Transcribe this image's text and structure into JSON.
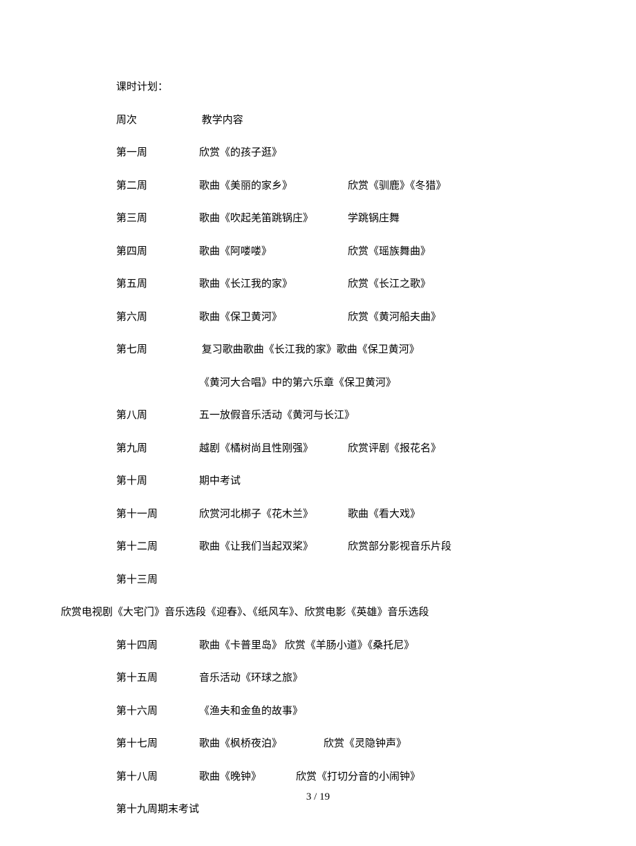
{
  "title": "课时计划：",
  "header_week": "周次",
  "header_content": "教学内容",
  "rows": [
    {
      "week": "第一周",
      "a": "欣赏《的孩子逛》",
      "b": ""
    },
    {
      "week": "第二周",
      "a": "歌曲《美丽的家乡》",
      "b": "欣赏《驯鹿》《冬猎》"
    },
    {
      "week": "第三周",
      "a": "歌曲《吹起羌笛跳锅庄》",
      "b": "学跳锅庄舞"
    },
    {
      "week": "第四周",
      "a": "歌曲《阿喽喽》",
      "b": "欣赏《瑶族舞曲》"
    },
    {
      "week": "第五周",
      "a": "歌曲《长江我的家》",
      "b": "欣赏《长江之歌》"
    },
    {
      "week": "第六周",
      "a": "歌曲《保卫黄河》",
      "b": "欣赏《黄河船夫曲》"
    }
  ],
  "row7": {
    "week": "第七周",
    "line1": "复习歌曲歌曲《长江我的家》歌曲《保卫黄河》",
    "line2": "《黄河大合唱》中的第六乐章《保卫黄河》"
  },
  "rows_mid": [
    {
      "week": "第八周",
      "a": "五一放假音乐活动《黄河与长江》",
      "b": ""
    },
    {
      "week": "第九周",
      "a": "越剧《橘树尚且性刚强》",
      "b": "欣赏评剧《报花名》"
    },
    {
      "week": "第十周",
      "a": "期中考试",
      "b": ""
    },
    {
      "week": "第十一周",
      "a": "欣赏河北梆子《花木兰》",
      "b": "歌曲《看大戏》"
    },
    {
      "week": "第十二周",
      "a": "歌曲《让我们当起双桨》",
      "b": "欣赏部分影视音乐片段"
    }
  ],
  "row13_week": "第十三周",
  "row13_full": "欣赏电视剧《大宅门》音乐选段《迎春》、《纸风车》、欣赏电影《英雄》音乐选段",
  "rows_late": [
    {
      "week": "第十四周",
      "a": "歌曲《卡普里岛》  欣赏《羊肠小道》《桑托尼》",
      "b": ""
    },
    {
      "week": "第十五周",
      "a": "音乐活动《环球之旅》",
      "b": ""
    },
    {
      "week": "第十六周",
      "a": "《渔夫和金鱼的故事》",
      "b": ""
    },
    {
      "week": "第十七周",
      "a": "歌曲《枫桥夜泊》",
      "b": "欣赏《灵隐钟声》",
      "a_width": 180
    },
    {
      "week": "第十八周",
      "a": "歌曲《晚钟》",
      "b": "欣赏《打切分音的小闹钟》",
      "a_width": 140
    }
  ],
  "row19": "第十九周期末考试",
  "page_num": "3 / 19"
}
